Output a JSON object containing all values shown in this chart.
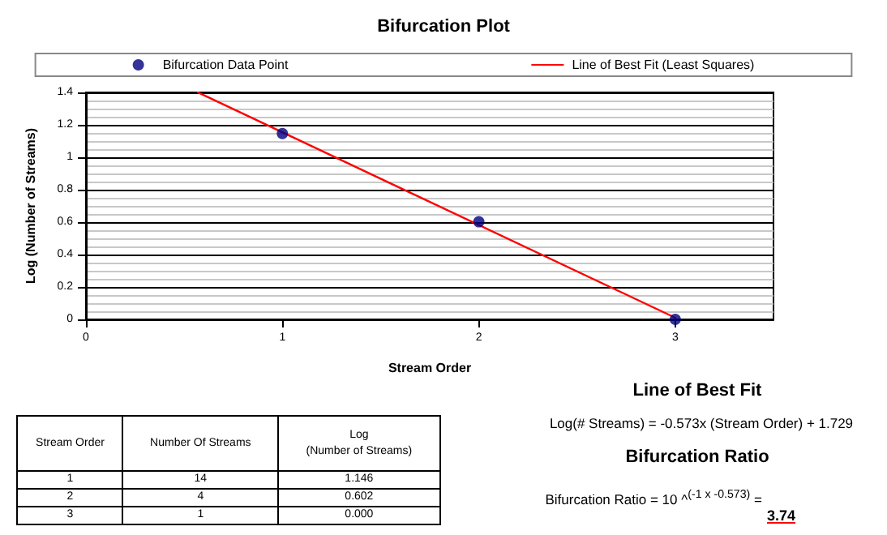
{
  "chart_data": {
    "type": "scatter",
    "title": "Bifurcation Plot",
    "xlabel": "Stream Order",
    "ylabel": "Log (Number of Streams)",
    "x": [
      1,
      2,
      3
    ],
    "series": [
      {
        "name": "Bifurcation Data Point",
        "color": "#000080",
        "values": [
          1.146,
          0.602,
          0.0
        ],
        "marker": "circle"
      },
      {
        "name": "Line of Best Fit (Least Squares)",
        "type": "line",
        "color": "#ff0000",
        "x": [
          0.57,
          3
        ],
        "values": [
          1.4,
          0.01
        ],
        "marker": "none",
        "line_style": "solid"
      }
    ],
    "xlim": [
      0,
      3.5
    ],
    "xticks": [
      0,
      1,
      2,
      3
    ],
    "ylim": [
      0,
      1.4
    ],
    "yticks": [
      0,
      0.2,
      0.4,
      0.6,
      0.8,
      1,
      1.2,
      1.4
    ],
    "grid": "y",
    "legend": "top",
    "annotations": [
      "Stream Order",
      "Number Of Streams",
      "Log\n(Number of Streams)",
      "1",
      "14",
      "1.146",
      "2",
      "4",
      "0.602",
      "3",
      "1",
      "0.000",
      "Line of Best Fit",
      "Log(# Streams) = -0.573x (Stream Order) + 1.729",
      "Bifurcation Ratio",
      "Bifurcation Ratio = 10 ^$^{(-1 x -0.573)}$ =",
      "3.74"
    ]
  }
}
